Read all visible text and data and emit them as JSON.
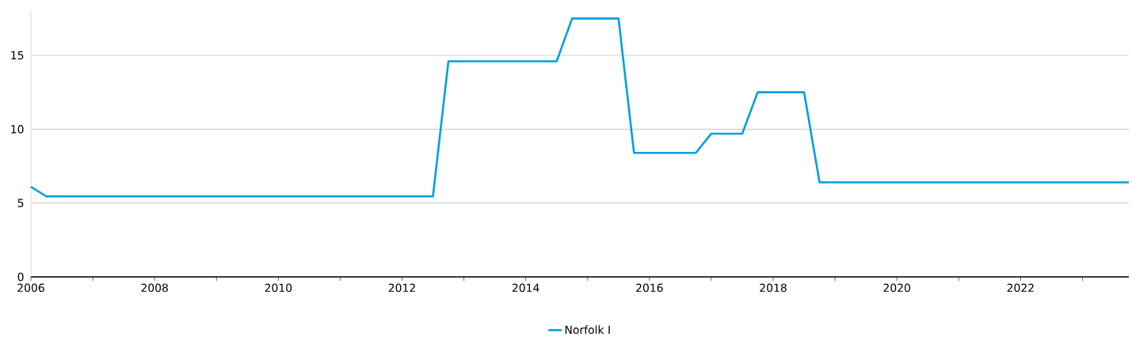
{
  "chart_data": {
    "type": "line",
    "x": [
      2006,
      2006.25,
      2012.5,
      2012.75,
      2014.5,
      2014.75,
      2015.5,
      2015.75,
      2016.75,
      2017,
      2017.5,
      2017.75,
      2018.5,
      2018.75,
      2023.75
    ],
    "series": [
      {
        "name": "Norfolk I",
        "color": "#009fdf",
        "values": [
          6.1,
          5.45,
          5.45,
          14.6,
          14.6,
          17.5,
          17.5,
          8.4,
          8.4,
          9.7,
          9.7,
          12.5,
          12.5,
          6.4,
          6.4
        ]
      }
    ],
    "xlim": [
      2006,
      2023.75
    ],
    "ylim": [
      0,
      18
    ],
    "xticks": [
      2006,
      {
        "value": 2007,
        "label": null
      },
      2008,
      {
        "value": 2009,
        "label": null
      },
      2010,
      {
        "value": 2011,
        "label": null
      },
      2012,
      {
        "value": 2013,
        "label": null
      },
      2014,
      {
        "value": 2015,
        "label": null
      },
      2016,
      {
        "value": 2017,
        "label": null
      },
      2018,
      {
        "value": 2019,
        "label": null
      },
      2020,
      {
        "value": 2021,
        "label": null
      },
      2022,
      {
        "value": 2023,
        "label": null
      }
    ],
    "yticks": [
      0,
      5,
      10,
      15
    ],
    "grid": "y",
    "legend": "bottom",
    "marker": "none",
    "line_style": "solid"
  }
}
